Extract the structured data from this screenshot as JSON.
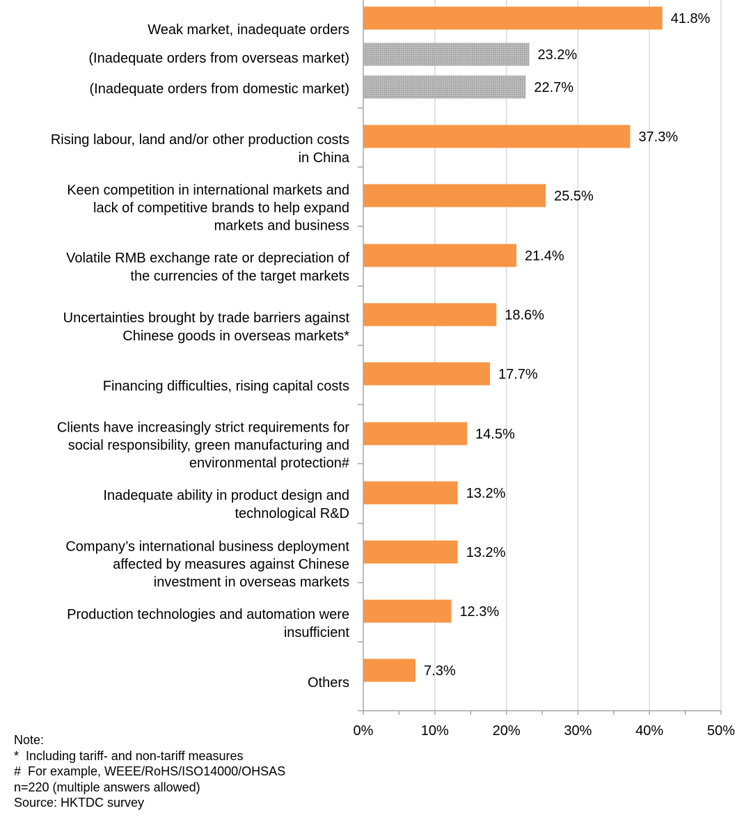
{
  "chart_data": {
    "type": "bar",
    "orientation": "horizontal",
    "categories": [
      [
        "Weak market, inadequate orders"
      ],
      [
        "(Inadequate orders from overseas market)"
      ],
      [
        "(Inadequate orders from domestic market)"
      ],
      [
        "Rising labour, land and/or other production costs",
        "in China"
      ],
      [
        "Keen competition in international markets and",
        "lack of competitive brands to help expand",
        "markets and business"
      ],
      [
        "Volatile RMB exchange rate or depreciation of",
        "the currencies of the target markets"
      ],
      [
        "Uncertainties brought by trade barriers against",
        "Chinese goods in overseas markets*"
      ],
      [
        "Financing difficulties, rising capital costs"
      ],
      [
        "Clients have increasingly strict requirements for",
        "social responsibility, green manufacturing and",
        "environmental protection#"
      ],
      [
        "Inadequate ability in product design and",
        "technological R&D"
      ],
      [
        "Company’s international business deployment",
        "affected by measures against Chinese",
        "investment in overseas markets"
      ],
      [
        "Production technologies and automation were",
        "insufficient"
      ],
      [
        "Others"
      ]
    ],
    "values": [
      41.8,
      23.2,
      22.7,
      37.3,
      25.5,
      21.4,
      18.6,
      17.7,
      14.5,
      13.2,
      13.2,
      12.3,
      7.3
    ],
    "value_labels": [
      "41.8%",
      "23.2%",
      "22.7%",
      "37.3%",
      "25.5%",
      "21.4%",
      "18.6%",
      "17.7%",
      "14.5%",
      "13.2%",
      "13.2%",
      "12.3%",
      "7.3%"
    ],
    "bar_style": [
      "main",
      "sub",
      "sub",
      "main",
      "main",
      "main",
      "main",
      "main",
      "main",
      "main",
      "main",
      "main",
      "main"
    ],
    "colors": {
      "main": "#F79646",
      "sub": "#A6A6A6",
      "grid": "#D9D9D9",
      "axis": "#A6A6A6"
    },
    "xlim": [
      0,
      50
    ],
    "xticks": [
      0,
      10,
      20,
      30,
      40,
      50
    ],
    "xtick_labels": [
      "0%",
      "10%",
      "20%",
      "30%",
      "40%",
      "50%"
    ],
    "grid": true,
    "title": "",
    "xlabel": "",
    "ylabel": ""
  },
  "notes": {
    "heading": "Note:",
    "lines": [
      "*  Including tariff- and non-tariff measures",
      "#  For example, WEEE/RoHS/ISO14000/OHSAS",
      "n=220 (multiple answers allowed)",
      "Source: HKTDC survey"
    ]
  }
}
